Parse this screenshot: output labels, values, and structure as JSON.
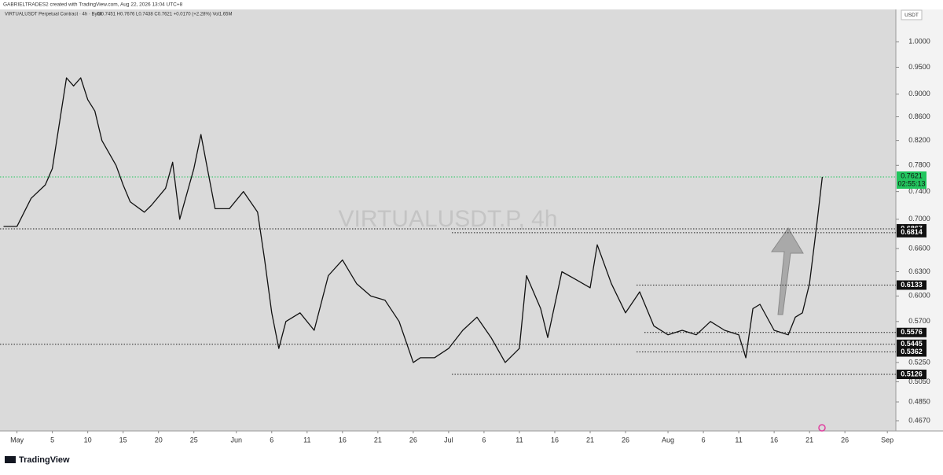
{
  "chart_data": {
    "type": "line",
    "credit": "GABRIELTRADES2 created with TradingView.com, Aug 22, 2026 13:04 UTC+8",
    "title": "VIRTUALUSDT Perpetual Contract · 4h · Bybit",
    "ohlc_info": "O0.7451 H0.7676 L0.7438 C0.7621 +0.0170 (+2.28%) Vol1.65M",
    "watermark": "VIRTUALUSDT.P, 4h",
    "currency": "USDT",
    "brand": "TradingView",
    "log_scale": true,
    "grid": false,
    "color": "#111111",
    "x": [
      -1.9,
      0,
      2,
      4,
      5,
      7,
      8,
      9,
      10,
      11,
      12,
      14,
      15,
      16,
      18,
      19,
      21,
      22,
      23,
      25,
      26,
      27,
      28,
      30,
      32,
      34,
      35,
      36,
      37,
      38,
      40,
      42,
      44,
      46,
      48,
      50,
      52,
      54,
      56,
      57,
      59,
      61,
      63,
      65,
      67,
      69,
      71,
      72,
      74,
      75,
      77,
      79,
      81,
      82,
      84,
      86,
      88,
      90,
      92,
      94,
      96,
      98,
      100,
      102,
      103,
      104,
      105,
      107,
      109,
      110,
      111,
      112,
      113,
      113.8
    ],
    "values": [
      0.69,
      0.69,
      0.73,
      0.75,
      0.775,
      0.93,
      0.915,
      0.93,
      0.89,
      0.87,
      0.82,
      0.78,
      0.75,
      0.725,
      0.71,
      0.72,
      0.745,
      0.785,
      0.7,
      0.775,
      0.83,
      0.77,
      0.715,
      0.715,
      0.74,
      0.71,
      0.645,
      0.58,
      0.54,
      0.57,
      0.58,
      0.56,
      0.625,
      0.645,
      0.615,
      0.6,
      0.595,
      0.57,
      0.525,
      0.53,
      0.53,
      0.54,
      0.56,
      0.575,
      0.552,
      0.525,
      0.54,
      0.625,
      0.585,
      0.552,
      0.63,
      0.62,
      0.61,
      0.665,
      0.615,
      0.58,
      0.605,
      0.565,
      0.555,
      0.56,
      0.555,
      0.57,
      0.56,
      0.555,
      0.53,
      0.585,
      0.59,
      0.56,
      0.555,
      0.575,
      0.58,
      0.615,
      0.69,
      0.7621
    ],
    "xlim": [
      -2.4,
      124.2
    ],
    "xticks": [
      {
        "value": 0,
        "label": "May"
      },
      5,
      10,
      15,
      20,
      25,
      {
        "value": 31,
        "label": "Jun"
      },
      {
        "value": 36,
        "label": "6"
      },
      {
        "value": 41,
        "label": "11"
      },
      {
        "value": 46,
        "label": "16"
      },
      {
        "value": 51,
        "label": "21"
      },
      {
        "value": 56,
        "label": "26"
      },
      {
        "value": 61,
        "label": "Jul"
      },
      {
        "value": 66,
        "label": "6"
      },
      {
        "value": 71,
        "label": "11"
      },
      {
        "value": 76,
        "label": "16"
      },
      {
        "value": 81,
        "label": "21"
      },
      {
        "value": 86,
        "label": "26"
      },
      {
        "value": 92,
        "label": "Aug"
      },
      {
        "value": 97,
        "label": "6"
      },
      {
        "value": 102,
        "label": "11"
      },
      {
        "value": 107,
        "label": "16"
      },
      {
        "value": 112,
        "label": "21"
      },
      {
        "value": 117,
        "label": "26"
      },
      {
        "value": 123,
        "label": "Sep"
      }
    ],
    "ylim": [
      0.4575,
      1.067
    ],
    "yticks": [
      {
        "value": 1,
        "label": "1.0000"
      },
      {
        "value": 0.95,
        "label": "0.9500"
      },
      {
        "value": 0.9,
        "label": "0.9000"
      },
      {
        "value": 0.86,
        "label": "0.8600"
      },
      {
        "value": 0.82,
        "label": "0.8200"
      },
      {
        "value": 0.78,
        "label": "0.7800"
      },
      {
        "value": 0.74,
        "label": "0.7400"
      },
      {
        "value": 0.7,
        "label": "0.7000"
      },
      {
        "value": 0.66,
        "label": "0.6600"
      },
      {
        "value": 0.63,
        "label": "0.6300"
      },
      {
        "value": 0.6,
        "label": "0.6000"
      },
      {
        "value": 0.57,
        "label": "0.5700"
      },
      {
        "value": 0.525,
        "label": "0.5250"
      },
      {
        "value": 0.505,
        "label": "0.5050"
      },
      {
        "value": 0.485,
        "label": "0.4850"
      },
      {
        "value": 0.467,
        "label": "0.4670"
      }
    ],
    "last_price": 0.7621,
    "countdown": "02:55:13",
    "last_price_color": "#22c55e",
    "levels": [
      0.6867,
      0.6814,
      0.6133,
      0.5576,
      0.5445,
      0.5362,
      0.5126
    ]
  }
}
